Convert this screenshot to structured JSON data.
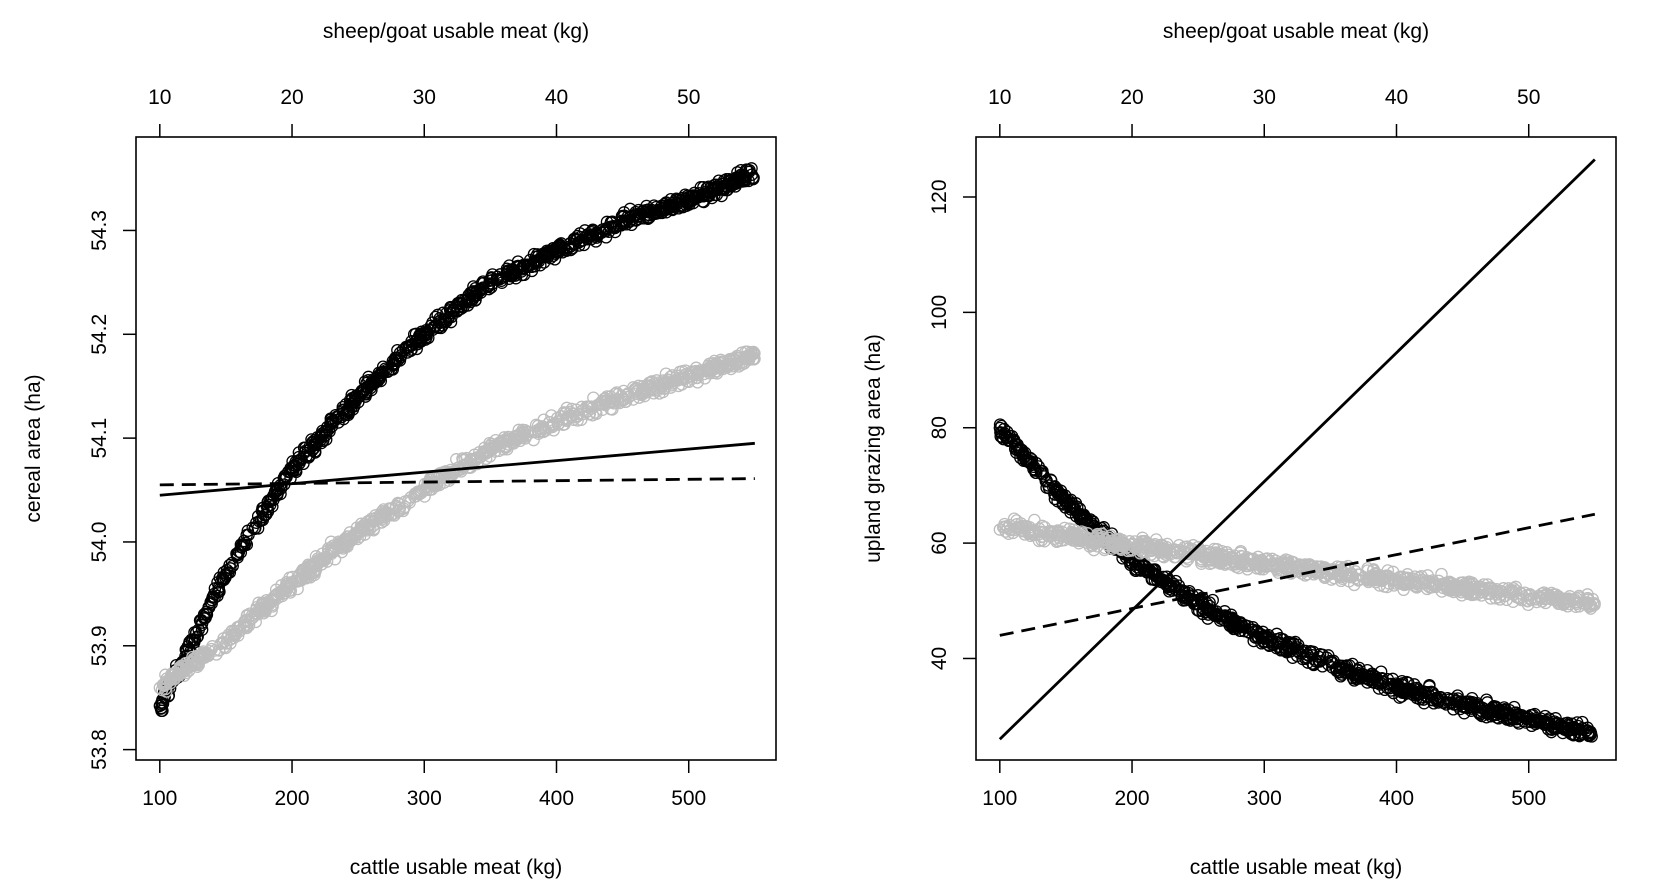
{
  "chart_data": [
    {
      "type": "scatter",
      "xlabel": "cattle usable meat (kg)",
      "x2label": "sheep/goat usable meat (kg)",
      "ylabel": "cereal area (ha)",
      "xlim": [
        82,
        566
      ],
      "x2lim": [
        8.2,
        56.6
      ],
      "ylim": [
        53.79,
        54.39
      ],
      "xticks": [
        "100",
        "200",
        "300",
        "400",
        "500"
      ],
      "x2ticks": [
        "10",
        "20",
        "30",
        "40",
        "50"
      ],
      "yticks": [
        "53.8",
        "53.9",
        "54.0",
        "54.1",
        "54.2",
        "54.3"
      ],
      "grid": false,
      "series": [
        {
          "marker": "open-circle",
          "color": "#000000",
          "x_axis": "cattle",
          "curve": {
            "x": [
              100,
              150,
              200,
              250,
              300,
              350,
              400,
              450,
              500,
              550
            ],
            "y": [
              53.84,
              53.97,
              54.07,
              54.14,
              54.2,
              54.25,
              54.28,
              54.31,
              54.33,
              54.355
            ]
          }
        },
        {
          "marker": "open-circle",
          "color": "#bdbdbd",
          "x_axis": "sheep/goat",
          "curve": {
            "x": [
              10,
              15,
              20,
              25,
              30,
              35,
              40,
              45,
              50,
              55
            ],
            "y": [
              53.86,
              53.905,
              53.96,
              54.01,
              54.05,
              54.09,
              54.115,
              54.14,
              54.16,
              54.18
            ]
          }
        }
      ],
      "lines": [
        {
          "style": "solid",
          "x": [
            100,
            550
          ],
          "y": [
            54.045,
            54.095
          ]
        },
        {
          "style": "dashed",
          "x": [
            100,
            550
          ],
          "y": [
            54.055,
            54.061
          ]
        }
      ]
    },
    {
      "type": "scatter",
      "xlabel": "cattle usable meat (kg)",
      "x2label": "sheep/goat usable meat (kg)",
      "ylabel": "upland grazing area (ha)",
      "xlim": [
        82,
        566
      ],
      "x2lim": [
        8.2,
        56.6
      ],
      "ylim": [
        22.4,
        130.4
      ],
      "xticks": [
        "100",
        "200",
        "300",
        "400",
        "500"
      ],
      "x2ticks": [
        "10",
        "20",
        "30",
        "40",
        "50"
      ],
      "yticks": [
        "40",
        "60",
        "80",
        "100",
        "120"
      ],
      "grid": false,
      "series": [
        {
          "marker": "open-circle",
          "color": "#000000",
          "x_axis": "cattle",
          "curve": {
            "x": [
              100,
              150,
              200,
              250,
              300,
              350,
              400,
              450,
              500,
              550
            ],
            "y": [
              80,
              67,
              57,
              49.5,
              43.5,
              39,
              35,
              32,
              29.5,
              27
            ]
          }
        },
        {
          "marker": "open-circle",
          "color": "#bdbdbd",
          "x_axis": "sheep/goat",
          "curve": {
            "x": [
              10,
              15,
              20,
              25,
              30,
              35,
              40,
              45,
              50,
              55
            ],
            "y": [
              63,
              61.3,
              59.6,
              58,
              56.5,
              55,
              53.6,
              52.2,
              50.8,
              49.5
            ]
          }
        }
      ],
      "lines": [
        {
          "style": "solid",
          "x": [
            100,
            550
          ],
          "y": [
            26,
            126.5
          ]
        },
        {
          "style": "dashed",
          "x": [
            100,
            550
          ],
          "y": [
            44,
            65
          ]
        }
      ]
    }
  ]
}
